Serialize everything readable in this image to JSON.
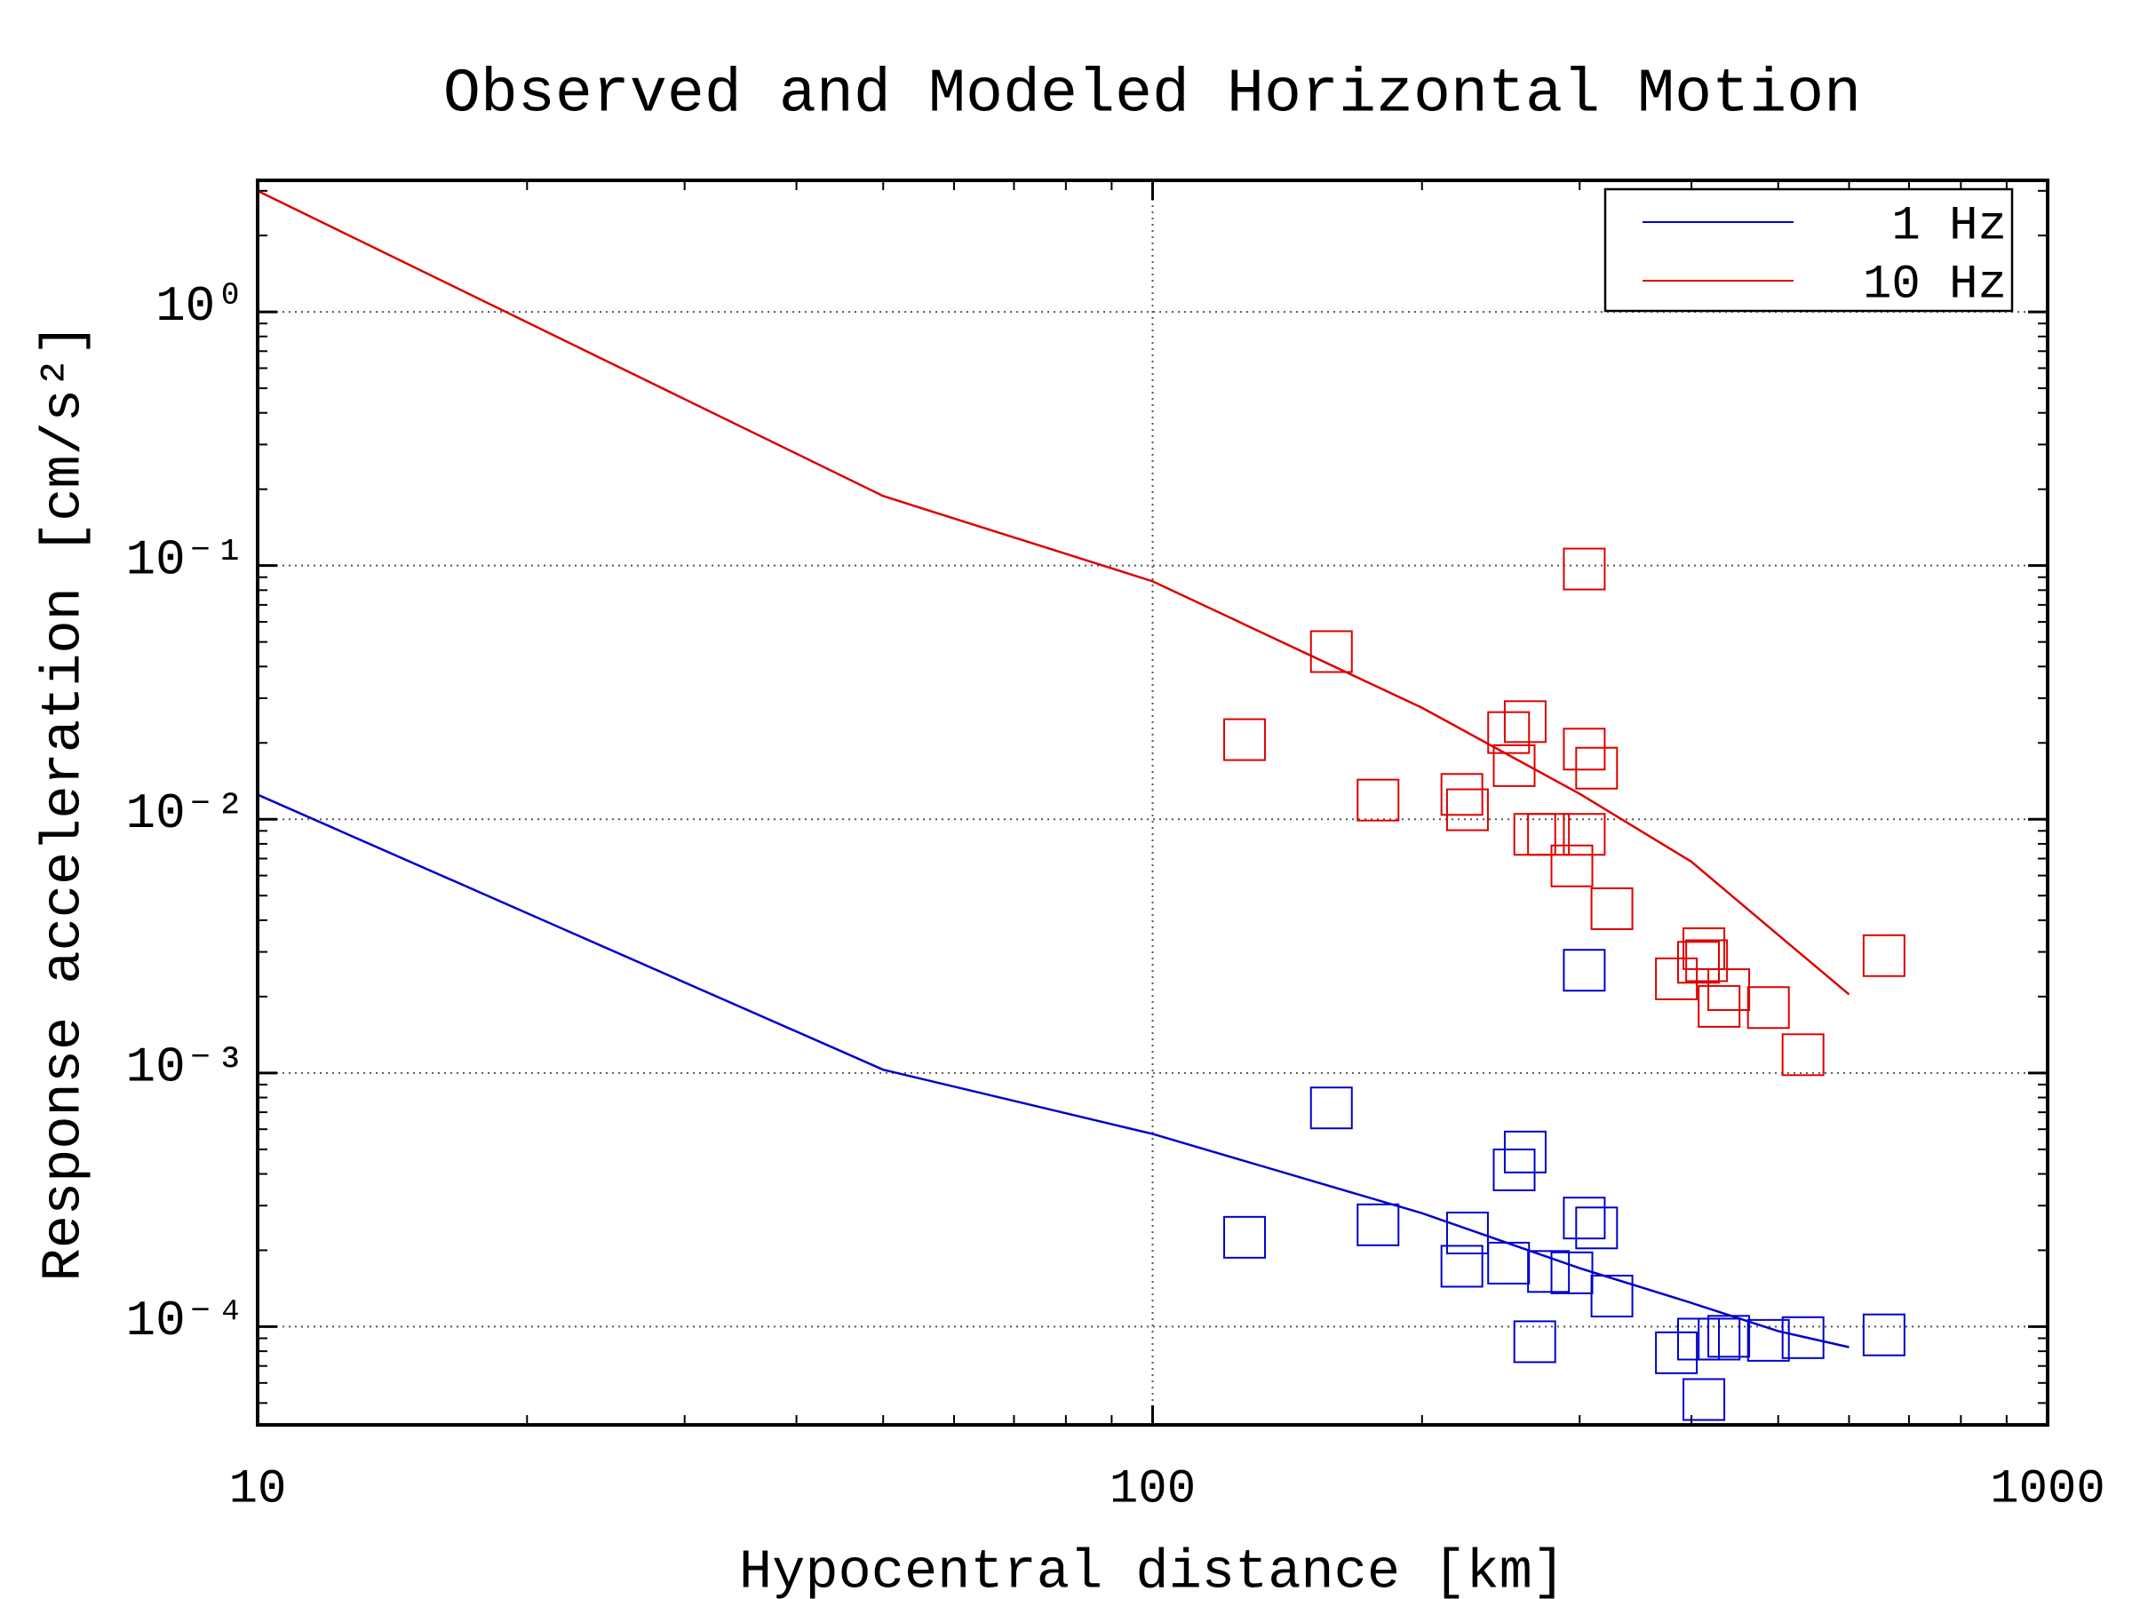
{
  "chart_data": {
    "type": "line",
    "title": "Observed and Modeled Horizontal Motion",
    "xlabel": "Hypocentral distance [km]",
    "ylabel": "Response acceleration [cm/s²]",
    "log_x": true,
    "log_y": true,
    "grid": true,
    "legend": "upper right",
    "xlim": [
      10,
      1000
    ],
    "ylim": [
      4.1e-05,
      3.3
    ],
    "xticks": [
      10,
      100,
      1000
    ],
    "x_minor_ticks": [
      20,
      30,
      40,
      50,
      60,
      70,
      80,
      90,
      200,
      300,
      400,
      500,
      600,
      700,
      800,
      900
    ],
    "yticks": [
      {
        "value": 0.0001,
        "label": "10⁻⁴"
      },
      {
        "value": 0.001,
        "label": "10⁻³"
      },
      {
        "value": 0.01,
        "label": "10⁻²"
      },
      {
        "value": 0.1,
        "label": "10⁻¹"
      },
      {
        "value": 1,
        "label": "10⁰"
      }
    ],
    "y_minor_ticks": [
      5e-05,
      6e-05,
      7e-05,
      8e-05,
      9e-05,
      0.0002,
      0.0003,
      0.0004,
      0.0005,
      0.0006,
      0.0007,
      0.0008,
      0.0009,
      0.002,
      0.003,
      0.004,
      0.005,
      0.006,
      0.007,
      0.008,
      0.009,
      0.02,
      0.03,
      0.04,
      0.05,
      0.06,
      0.07,
      0.08,
      0.09,
      0.2,
      0.3,
      0.4,
      0.5,
      0.6,
      0.7,
      0.8,
      0.9,
      2,
      3
    ],
    "series": [
      {
        "name": "1 Hz",
        "color": "#0000cc",
        "x": [
          10,
          50,
          100,
          200,
          300,
          400,
          500,
          600
        ],
        "values": [
          0.0125,
          0.00103,
          0.000575,
          0.00028,
          0.00017,
          0.000124,
          9.6e-05,
          8.3e-05
        ]
      },
      {
        "name": "10 Hz",
        "color": "#dd0000",
        "x": [
          10,
          50,
          100,
          200,
          300,
          400,
          500,
          600
        ],
        "values": [
          3.0,
          0.188,
          0.0867,
          0.0275,
          0.0126,
          0.0068,
          0.0035,
          0.00204
        ]
      }
    ],
    "observed": [
      {
        "color": "#dd0000",
        "marker": "square",
        "x": [
          126.7,
          158.4,
          178.6,
          221.6,
          224.8,
          249.9,
          253.5,
          260.8,
          267.3,
          276.9,
          294.1,
          303.6,
          303.6,
          303.6,
          313.4,
          326,
          384.8,
          407.3,
          413,
          415.9,
          440.3,
          429.5,
          487.6,
          533,
          656.5
        ],
        "values": [
          0.0206,
          0.0458,
          0.0119,
          0.01253,
          0.0109,
          0.02196,
          0.01627,
          0.02426,
          0.00872,
          0.00872,
          0.00655,
          0.0969,
          0.0189,
          0.00872,
          0.0159,
          0.00444,
          0.00235,
          0.00273,
          0.00309,
          0.00277,
          0.00213,
          0.00183,
          0.00181,
          0.00118,
          0.0029
        ]
      },
      {
        "color": "#0000cc",
        "marker": "square",
        "x": [
          126.7,
          158.4,
          178.6,
          221.6,
          224.8,
          249.9,
          253.5,
          260.8,
          267.3,
          276.9,
          294.1,
          303.6,
          303.6,
          313.4,
          326,
          384.8,
          407.3,
          413,
          429.5,
          440.3,
          487.6,
          533,
          656.5
        ],
        "values": [
          0.000225,
          0.000728,
          0.000252,
          0.000173,
          0.000234,
          0.000178,
          0.000415,
          0.000488,
          8.72e-05,
          0.000165,
          0.000163,
          0.000268,
          0.00254,
          0.000245,
          0.000132,
          7.89e-05,
          8.93e-05,
          5.16e-05,
          8.93e-05,
          9.16e-05,
          8.83e-05,
          9.05e-05,
          9.28e-05
        ]
      }
    ]
  }
}
